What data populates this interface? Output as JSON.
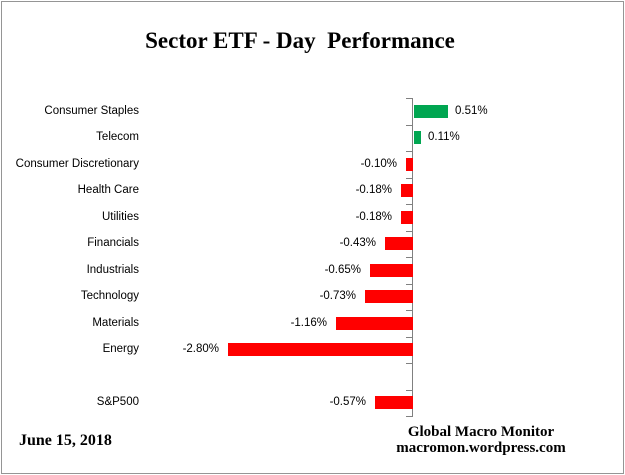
{
  "chart_data": {
    "type": "bar",
    "orientation": "horizontal",
    "title": "Sector ETF - Day  Performance",
    "categories": [
      "Consumer Staples",
      "Telecom",
      "Consumer Discretionary",
      "Health Care",
      "Utilities",
      "Financials",
      "Industrials",
      "Technology",
      "Materials",
      "Energy",
      "",
      "S&P500"
    ],
    "values": [
      0.51,
      0.11,
      -0.1,
      -0.18,
      -0.18,
      -0.43,
      -0.65,
      -0.73,
      -1.16,
      -2.8,
      null,
      -0.57
    ],
    "value_labels": [
      "0.51%",
      "0.11%",
      "-0.10%",
      "-0.18%",
      "-0.18%",
      "-0.43%",
      "-0.65%",
      "-0.73%",
      "-1.16%",
      "-2.80%",
      "",
      "-0.57%"
    ],
    "colors": {
      "positive": "#00A651",
      "negative": "#FF0000",
      "axis": "#808080",
      "text": "#000000"
    },
    "legend": "none",
    "grid": "off",
    "value_axis_labels_visible": false
  },
  "footer": {
    "date": "June 15, 2018",
    "credit_line1": "Global Macro Monitor",
    "credit_line2": "macromon.wordpress.com"
  }
}
